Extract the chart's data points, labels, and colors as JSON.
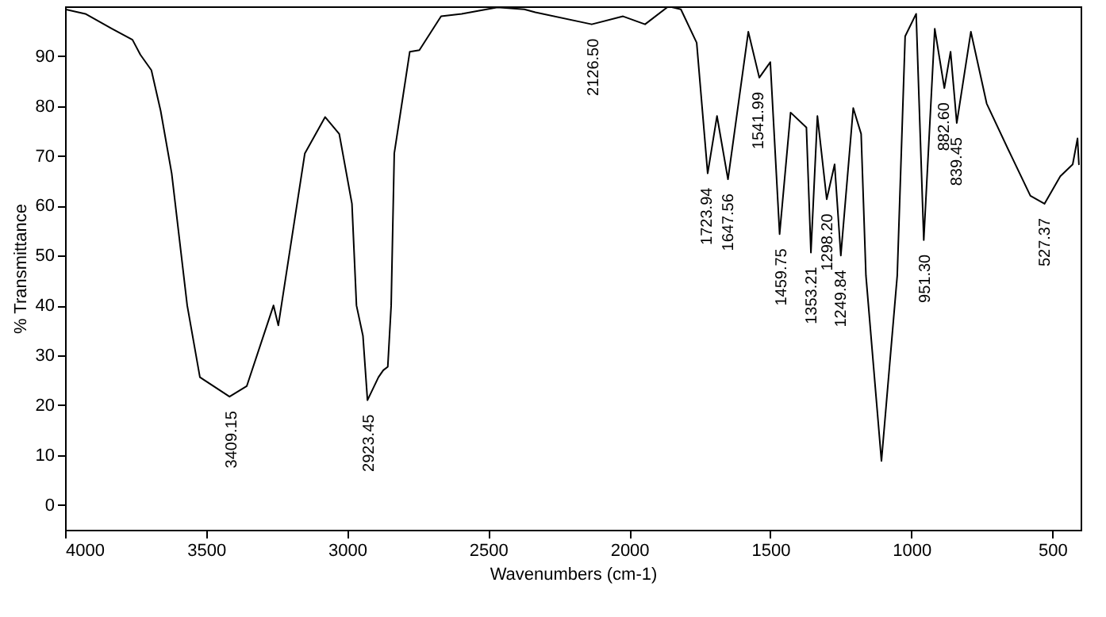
{
  "chart_data": {
    "type": "line",
    "xlabel": "Wavenumbers (cm-1)",
    "ylabel": "% Transmittance",
    "xlim": [
      4000,
      400
    ],
    "ylim": [
      -5,
      100
    ],
    "xticks": [
      4000,
      3500,
      3000,
      2500,
      2000,
      1500,
      1000,
      500
    ],
    "yticks": [
      0,
      10,
      20,
      30,
      40,
      50,
      60,
      70,
      80,
      90
    ],
    "grid": false,
    "series": [
      {
        "color": "#000000",
        "x": [
          4000,
          3928,
          3833,
          3761,
          3733,
          3694,
          3661,
          3622,
          3567,
          3522,
          3417,
          3356,
          3261,
          3244,
          3150,
          3078,
          3028,
          2983,
          2967,
          2944,
          2928,
          2889,
          2872,
          2856,
          2844,
          2833,
          2778,
          2744,
          2667,
          2594,
          2467,
          2372,
          2333,
          2133,
          2022,
          1944,
          1861,
          1817,
          1761,
          1722,
          1689,
          1650,
          1578,
          1539,
          1500,
          1467,
          1428,
          1372,
          1356,
          1333,
          1300,
          1272,
          1250,
          1206,
          1178,
          1161,
          1106,
          1050,
          1022,
          983,
          956,
          917,
          883,
          861,
          839,
          789,
          733,
          650,
          578,
          528,
          472,
          428,
          411,
          406
        ],
        "values": [
          99.4,
          98.5,
          95.5,
          93.3,
          90.3,
          87.2,
          79,
          66.5,
          40,
          25.6,
          21.7,
          23.8,
          40,
          36,
          70.5,
          77.8,
          74.4,
          60.4,
          40,
          33.9,
          21,
          25.6,
          27,
          27.7,
          40,
          70.5,
          90.9,
          91.2,
          98,
          98.5,
          99.8,
          99.4,
          98.8,
          96.4,
          98,
          96.4,
          100,
          99.4,
          92.7,
          66.5,
          78,
          65.3,
          94.9,
          85.7,
          88.8,
          54.3,
          78.7,
          75.7,
          50.6,
          78,
          61.3,
          68.3,
          50,
          79.6,
          74.4,
          46,
          8.8,
          46,
          94,
          98.5,
          53.1,
          95.5,
          83.6,
          90.9,
          76.6,
          94.9,
          80.5,
          70.5,
          62,
          60.4,
          65.9,
          68.3,
          73.5,
          68.3
        ]
      }
    ],
    "annotations": [
      {
        "text": "3409.15",
        "x": 3409.15,
        "y": 21.7
      },
      {
        "text": "2923.45",
        "x": 2923.45,
        "y": 21
      },
      {
        "text": "2126.50",
        "x": 2126.5,
        "y": 96.4
      },
      {
        "text": "1723.94",
        "x": 1723.94,
        "y": 66.5
      },
      {
        "text": "1647.56",
        "x": 1647.56,
        "y": 65.3
      },
      {
        "text": "1541.99",
        "x": 1541.99,
        "y": 85.7
      },
      {
        "text": "1459.75",
        "x": 1459.75,
        "y": 54.3
      },
      {
        "text": "1353.21",
        "x": 1353.21,
        "y": 50.6
      },
      {
        "text": "1298.20",
        "x": 1298.2,
        "y": 61.3
      },
      {
        "text": "1249.84",
        "x": 1249.84,
        "y": 50
      },
      {
        "text": "951.30",
        "x": 951.3,
        "y": 53.1
      },
      {
        "text": "882.60",
        "x": 882.6,
        "y": 83.6
      },
      {
        "text": "839.45",
        "x": 839.45,
        "y": 76.6
      },
      {
        "text": "527.37",
        "x": 527.37,
        "y": 60.4
      }
    ]
  }
}
